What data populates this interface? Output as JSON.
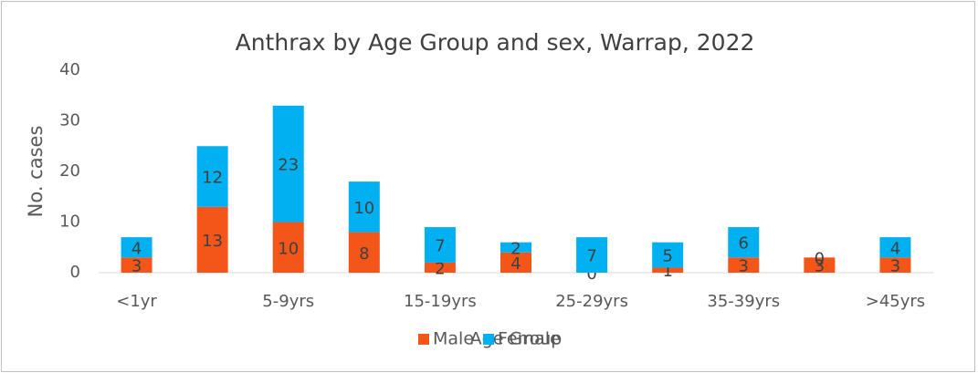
{
  "chart_data": {
    "type": "bar",
    "stacked": true,
    "title": "Anthrax by Age Group and sex, Warrap, 2022",
    "x_label": "Age Group",
    "y_label": "No. cases",
    "categories": [
      "<1yr",
      null,
      "5-9yrs",
      null,
      "15-19yrs",
      null,
      "25-29yrs",
      null,
      "35-39yrs",
      null,
      ">45yrs"
    ],
    "series": [
      {
        "name": "Male",
        "color": "#f4561a",
        "values": [
          3,
          13,
          10,
          8,
          2,
          4,
          0,
          1,
          3,
          3,
          3
        ]
      },
      {
        "name": "Female",
        "color": "#00b0f0",
        "values": [
          4,
          12,
          23,
          10,
          7,
          2,
          7,
          5,
          6,
          0,
          4
        ]
      }
    ],
    "ylim": [
      0,
      40
    ],
    "yticks": [
      0,
      10,
      20,
      30,
      40
    ],
    "grid": false,
    "legend": "bottom"
  }
}
